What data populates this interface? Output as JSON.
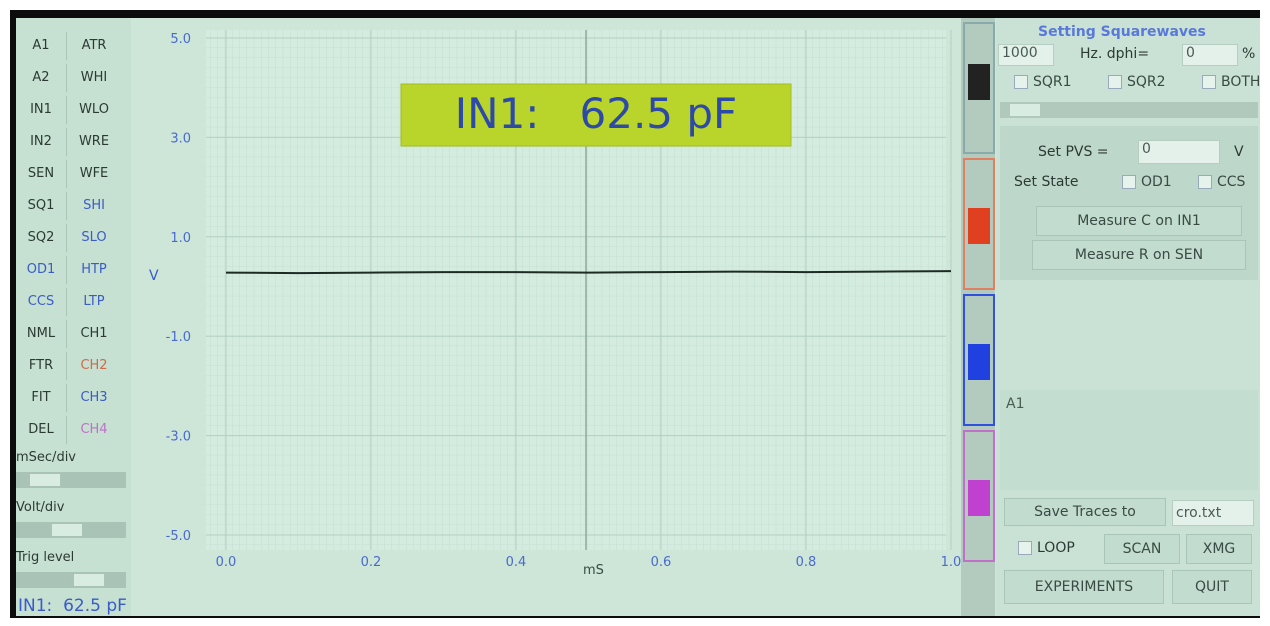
{
  "chart_data": {
    "type": "line",
    "annotation": "IN1:   62.5 pF",
    "xlabel": "mS",
    "ylabel": "V",
    "xlim": [
      0,
      1
    ],
    "ylim": [
      -5,
      5
    ],
    "xticks": [
      {
        "value": 0,
        "label": "0.0"
      },
      {
        "value": 0.2,
        "label": "0.2"
      },
      {
        "value": 0.4,
        "label": "0.4"
      },
      {
        "value": 0.6,
        "label": "0.6"
      },
      {
        "value": 0.8,
        "label": "0.8"
      },
      {
        "value": 1,
        "label": "1.0"
      }
    ],
    "yticks": [
      {
        "value": 5,
        "label": "5.0"
      },
      {
        "value": 3,
        "label": "3.0"
      },
      {
        "value": 1,
        "label": "1.0"
      },
      {
        "value": -1,
        "label": "-1.0"
      },
      {
        "value": -3,
        "label": "-3.0"
      },
      {
        "value": -5,
        "label": "-5.0"
      }
    ],
    "x": [
      0,
      0.1,
      0.2,
      0.3,
      0.4,
      0.5,
      0.6,
      0.7,
      0.8,
      0.9,
      1
    ],
    "values": [
      0.28,
      0.27,
      0.28,
      0.29,
      0.29,
      0.28,
      0.29,
      0.3,
      0.29,
      0.3,
      0.31
    ],
    "color": "#1e2a24"
  },
  "left_panel": {
    "buttons": [
      [
        "A1",
        "ATR"
      ],
      [
        "A2",
        "WHI"
      ],
      [
        "IN1",
        "WLO"
      ],
      [
        "IN2",
        "WRE"
      ],
      [
        "SEN",
        "WFE"
      ],
      [
        "SQ1",
        "SHI"
      ],
      [
        "SQ2",
        "SLO"
      ],
      [
        "OD1",
        "HTP"
      ],
      [
        "CCS",
        "LTP"
      ],
      [
        "NML",
        "CH1"
      ],
      [
        "FTR",
        "CH2"
      ],
      [
        "FIT",
        "CH3"
      ],
      [
        "DEL",
        "CH4"
      ]
    ],
    "sliders": [
      "mSec/div",
      "Volt/div",
      "Trig level"
    ],
    "status": "IN1:  62.5 pF"
  },
  "settings": {
    "title": "Setting Squarewaves",
    "freq": "1000",
    "dphi_label": "Hz. dphi=",
    "dphi": "0",
    "dphi_unit": "%",
    "checks": [
      "SQR1",
      "SQR2",
      "BOTH"
    ],
    "pvs_label": "Set PVS =",
    "pvs": "0",
    "pvs_unit": "V",
    "state_label": "Set State",
    "state_checks": [
      "OD1",
      "CCS"
    ],
    "buttons": [
      "Measure C on IN1",
      "Measure R on SEN"
    ],
    "output": "A1",
    "save_label": "Save Traces to",
    "save_file": "cro.txt",
    "loop": "LOOP",
    "scan": "SCAN",
    "xmg": "XMG",
    "experiments": "EXPERIMENTS",
    "quit": "QUIT"
  }
}
